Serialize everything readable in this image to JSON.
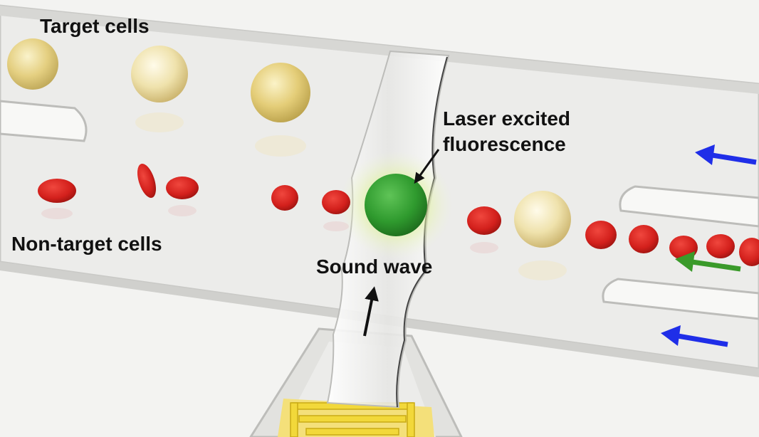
{
  "labels": {
    "target_cells": "Target cells",
    "non_target_cells": "Non-target cells",
    "laser_excited_line1": "Laser excited",
    "laser_excited_line2": "fluorescence",
    "sound_wave": "Sound wave"
  },
  "colors": {
    "background": "#f3f3f1",
    "channel": "#eeeeec",
    "target_cell": "#dcc66a",
    "red_cell": "#d3201c",
    "fluorescent_cell": "#2f9a2e",
    "glow": "#c8ec7a",
    "flow_arrow_blue": "#1f2ee8",
    "flow_arrow_green": "#3a9a2a",
    "transducer": "#f2d83a",
    "pointer_arrow": "#111111"
  }
}
